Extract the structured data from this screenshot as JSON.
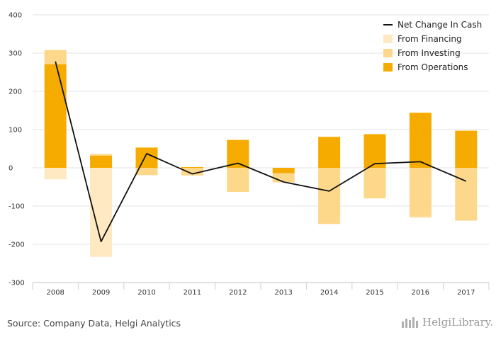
{
  "chart_data": {
    "type": "bar",
    "categories": [
      "2008",
      "2009",
      "2010",
      "2011",
      "2012",
      "2013",
      "2014",
      "2015",
      "2016",
      "2017"
    ],
    "ylim": [
      -300,
      400
    ],
    "yticks": [
      400,
      300,
      200,
      100,
      0,
      -100,
      -200,
      -300
    ],
    "grid": true,
    "legend_position": "top-right",
    "series": [
      {
        "name": "From Operations",
        "kind": "bar",
        "color": "#f5ab00",
        "values": [
          271,
          32,
          53,
          2,
          73,
          -14,
          81,
          88,
          144,
          97
        ]
      },
      {
        "name": "From Investing",
        "kind": "bar",
        "color": "#fdd78a",
        "values": [
          37,
          4,
          -19,
          -20,
          -63,
          -24,
          -147,
          -80,
          -128,
          -138
        ]
      },
      {
        "name": "From Financing",
        "kind": "bar",
        "color": "#fee9c2",
        "values": [
          -30,
          -233,
          0,
          0,
          0,
          0,
          0,
          0,
          -3,
          0
        ]
      },
      {
        "name": "Net Change In Cash",
        "kind": "line",
        "color": "#111111",
        "values": [
          278,
          -193,
          37,
          -16,
          12,
          -37,
          -61,
          11,
          16,
          -35
        ]
      }
    ]
  },
  "legend": [
    {
      "label": "Net Change In Cash",
      "kind": "line",
      "color": "#111111"
    },
    {
      "label": "From Financing",
      "kind": "box",
      "color": "#fee9c2"
    },
    {
      "label": "From Investing",
      "kind": "box",
      "color": "#fdd78a"
    },
    {
      "label": "From Operations",
      "kind": "box",
      "color": "#f5ab00"
    }
  ],
  "footer": {
    "source": "Source: Company Data, Helgi Analytics",
    "brand": "HelgiLibrary."
  }
}
